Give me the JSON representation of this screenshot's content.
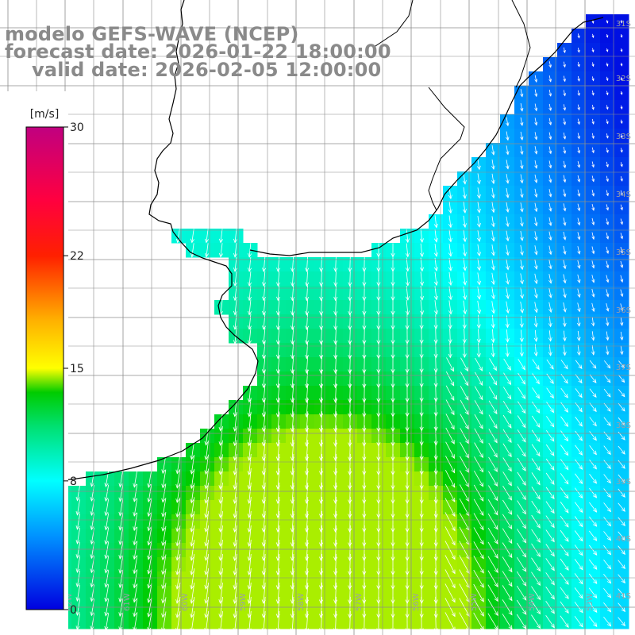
{
  "header": {
    "title_line1": "modelo GEFS-WAVE (NCEP)",
    "title_line2": "forecast date: 2026-01-22 18:00:00",
    "title_line3": "valid date: 2026-02-05 12:00:00"
  },
  "colorbar": {
    "unit": "[m/s]",
    "ticks": [
      "30",
      "22",
      "15",
      "8",
      "0"
    ],
    "tick_values": [
      30,
      22,
      15,
      8,
      0
    ],
    "min": 0,
    "max": 30,
    "colors": [
      "#0000e0",
      "#00a8ff",
      "#00ffff",
      "#00e060",
      "#00d000",
      "#ffff00",
      "#ff8000",
      "#ff0000",
      "#cc0070"
    ]
  },
  "latitude_labels": [
    "31S",
    "32S",
    "33S",
    "34S",
    "35S",
    "36S",
    "37S",
    "38S",
    "39S",
    "40S",
    "41S"
  ],
  "longitude_labels": [
    "63W",
    "62W",
    "61W",
    "60W",
    "59W",
    "58W",
    "57W",
    "56W",
    "55W",
    "54W",
    "53W"
  ],
  "colors": {
    "land": "#ffffff",
    "grid": "#999999",
    "coast": "#000000",
    "arrow": "#ffffff",
    "title": "#8a8a8a"
  }
}
